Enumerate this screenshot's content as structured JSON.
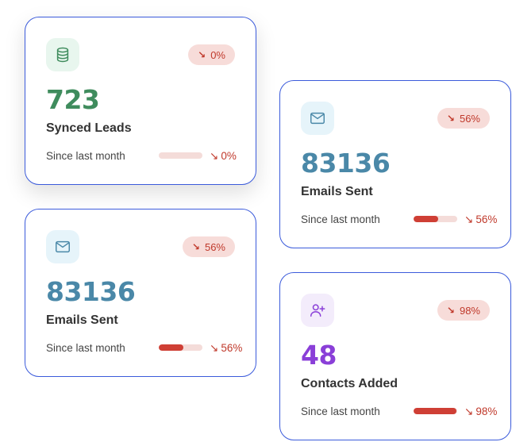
{
  "cards": [
    {
      "id": "card-synced",
      "icon": "database-icon",
      "icon_bg": "#e8f6ee",
      "icon_color": "#3f8c5d",
      "badge": "0%",
      "value": "723",
      "value_color": "#3f8c5d",
      "label": "Synced Leads",
      "since": "Since last month",
      "progress": 0,
      "trend": "0%"
    },
    {
      "id": "card-emails-right",
      "icon": "mail-icon",
      "icon_bg": "#e6f4fa",
      "icon_color": "#4a88a8",
      "badge": "56%",
      "value": "83136",
      "value_color": "#4a88a8",
      "label": "Emails Sent",
      "since": "Since last month",
      "progress": 56,
      "trend": "56%"
    },
    {
      "id": "card-emails-left",
      "icon": "mail-icon",
      "icon_bg": "#e6f4fa",
      "icon_color": "#4a88a8",
      "badge": "56%",
      "value": "83136",
      "value_color": "#4a88a8",
      "label": "Emails Sent",
      "since": "Since last month",
      "progress": 56,
      "trend": "56%"
    },
    {
      "id": "card-contacts",
      "icon": "user-plus-icon",
      "icon_bg": "#f3ecfb",
      "icon_color": "#8a3fd8",
      "badge": "98%",
      "value": "48",
      "value_color": "#8a3fd8",
      "label": "Contacts Added",
      "since": "Since last month",
      "progress": 98,
      "trend": "98%"
    }
  ],
  "colors": {
    "card_border": "#3b5bdb",
    "negative": "#c0392b",
    "badge_bg": "#f7dcd9",
    "bar_track": "#f4dcd9",
    "bar_fill": "#cf3f35"
  }
}
